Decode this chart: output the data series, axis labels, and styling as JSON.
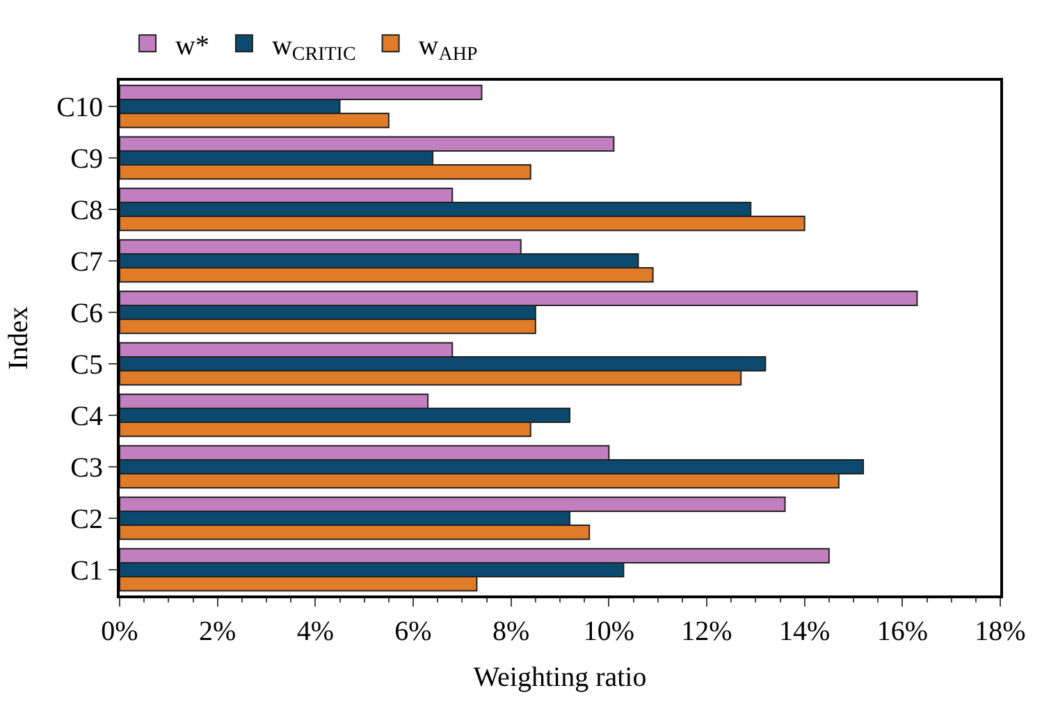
{
  "chart_data": {
    "type": "bar",
    "orientation": "horizontal",
    "xlabel": "Weighting ratio",
    "ylabel": "Index",
    "categories": [
      "C10",
      "C9",
      "C8",
      "C7",
      "C6",
      "C5",
      "C4",
      "C3",
      "C2",
      "C1"
    ],
    "series": [
      {
        "name": "w*",
        "color": "#c17fbf",
        "values": [
          7.4,
          10.1,
          6.8,
          8.2,
          16.3,
          6.8,
          6.3,
          10.0,
          13.6,
          14.5
        ]
      },
      {
        "name": "w$_{CRITIC}$",
        "color": "#0b4a6e",
        "values": [
          4.5,
          6.4,
          12.9,
          10.6,
          8.5,
          13.2,
          9.2,
          15.2,
          9.2,
          10.3
        ]
      },
      {
        "name": "w$_{AHP}$",
        "color": "#e07b28",
        "values": [
          5.5,
          8.4,
          14.0,
          10.9,
          8.5,
          12.7,
          8.4,
          14.7,
          9.6,
          7.3
        ]
      }
    ],
    "xlim": [
      0,
      18
    ],
    "xticks": [
      {
        "value": 0,
        "label": "0%"
      },
      {
        "value": 2,
        "label": "2%"
      },
      {
        "value": 4,
        "label": "4%"
      },
      {
        "value": 6,
        "label": "6%"
      },
      {
        "value": 8,
        "label": "8%"
      },
      {
        "value": 10,
        "label": "10%"
      },
      {
        "value": 12,
        "label": "12%"
      },
      {
        "value": 14,
        "label": "14%"
      },
      {
        "value": 16,
        "label": "16%"
      },
      {
        "value": 18,
        "label": "18%"
      }
    ],
    "legend": "top"
  }
}
